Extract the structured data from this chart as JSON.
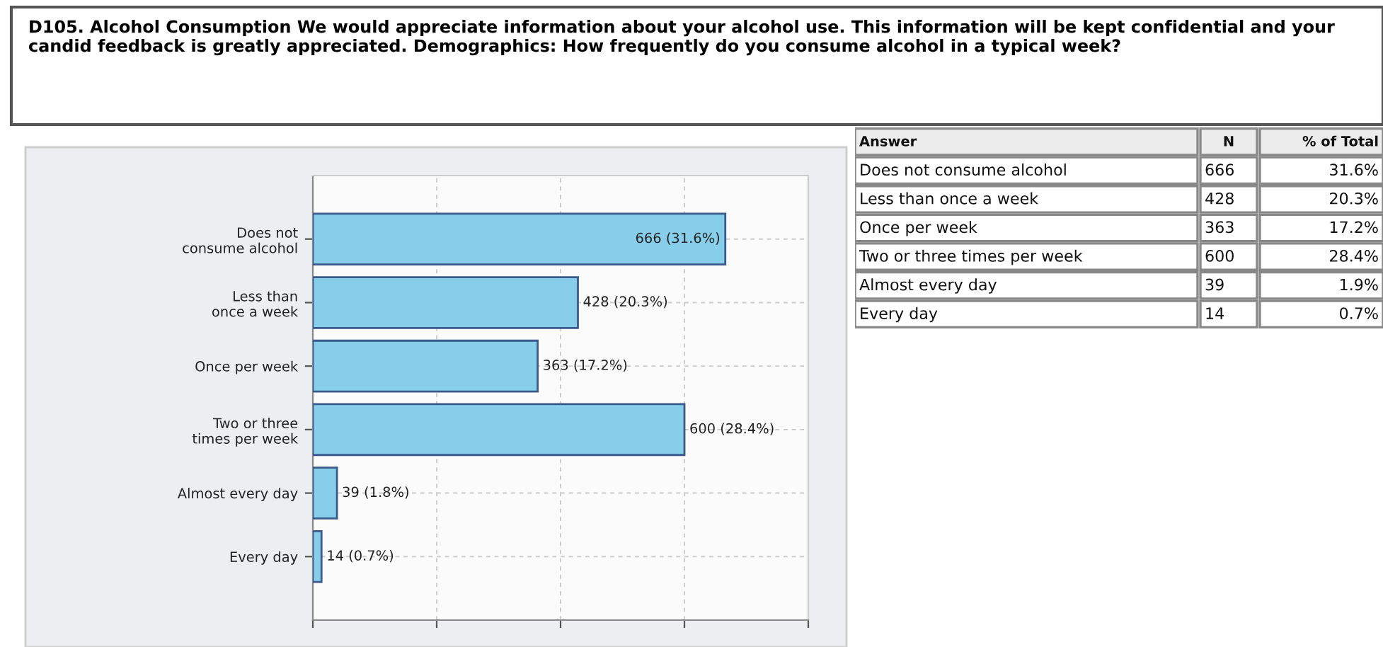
{
  "chart_data": [
    {
      "type": "bar",
      "orientation": "horizontal",
      "title": "D105. Alcohol Consumption We would appreciate information about your alcohol use. This information will be kept confidential and your candid feedback is greatly appreciated. Demographics: How frequently do you consume alcohol in a typical week?",
      "categories": [
        "Does not\nconsume alcohol",
        "Less than\nonce a week",
        "Once per week",
        "Two or three\ntimes per week",
        "Almost every day",
        "Every day"
      ],
      "values": [
        666,
        428,
        363,
        600,
        39,
        14
      ],
      "value_labels": [
        "666 (31.6%)",
        "428 (20.3%)",
        "363 (17.2%)",
        "600 (28.4%)",
        "39 (1.8%)",
        "14 (0.7%)"
      ],
      "color": "#87ceeb",
      "xlim": [
        0,
        800
      ],
      "xticks": [
        {
          "value": 0,
          "label": null
        },
        {
          "value": 200,
          "label": null
        },
        {
          "value": 400,
          "label": null
        },
        {
          "value": 600,
          "label": null
        },
        {
          "value": 800,
          "label": null
        }
      ],
      "grid": true,
      "tick_labels": "y"
    },
    {
      "type": "other",
      "ylabel": "Answer",
      "categories": [
        "Does not consume alcohol",
        "Less than once a week",
        "Once per week",
        "Two or three times per week",
        "Almost every day",
        "Every day"
      ],
      "series": [
        {
          "name": "N",
          "values": [
            666,
            428,
            363,
            600,
            39,
            14
          ],
          "value_labels": [
            "666",
            "428",
            "363",
            "600",
            "39",
            "14"
          ]
        },
        {
          "name": "% of Total",
          "values": [
            31.6,
            20.3,
            17.2,
            28.4,
            1.9,
            0.7
          ],
          "value_labels": [
            "31.6%",
            "20.3%",
            "17.2%",
            "28.4%",
            "1.9%",
            "0.7%"
          ]
        }
      ]
    }
  ]
}
